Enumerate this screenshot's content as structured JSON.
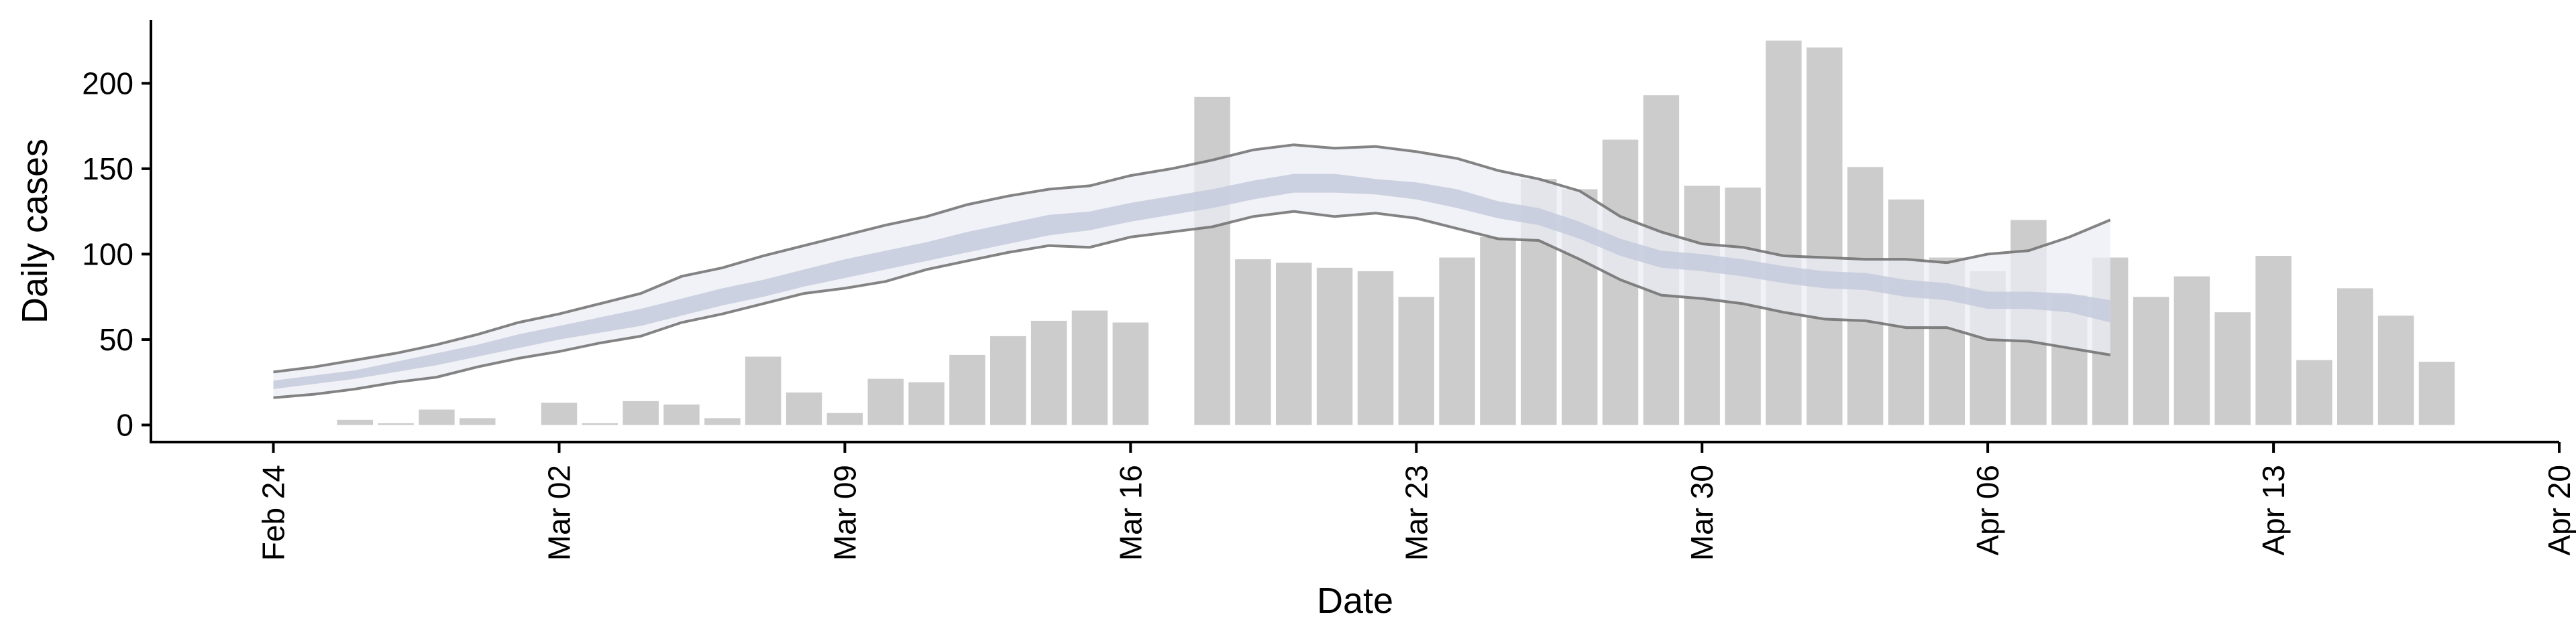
{
  "chart_data": {
    "type": "bar",
    "xlabel": "Date",
    "ylabel": "Daily cases",
    "x_ticks": [
      "Feb 24",
      "Mar 02",
      "Mar 09",
      "Mar 16",
      "Mar 23",
      "Mar 30",
      "Apr 06",
      "Apr 13",
      "Apr 20"
    ],
    "x_tick_dates": [
      "2020-02-24",
      "2020-03-02",
      "2020-03-09",
      "2020-03-16",
      "2020-03-23",
      "2020-03-30",
      "2020-04-06",
      "2020-04-13",
      "2020-04-20"
    ],
    "y_ticks": [
      0,
      50,
      100,
      150,
      200
    ],
    "xlim": [
      "2020-02-21",
      "2020-04-20"
    ],
    "ylim": [
      -10,
      237
    ],
    "grid": false,
    "colors": {
      "bars": "#cccccc",
      "ci_outer": "#eceef4",
      "ci_inner": "#c5cbdd",
      "ci_lines": "#6e6e6e",
      "axis": "#000000"
    },
    "bars": {
      "dates": [
        "2020-02-24",
        "2020-02-25",
        "2020-02-26",
        "2020-02-27",
        "2020-02-28",
        "2020-02-29",
        "2020-03-01",
        "2020-03-02",
        "2020-03-03",
        "2020-03-04",
        "2020-03-05",
        "2020-03-06",
        "2020-03-07",
        "2020-03-08",
        "2020-03-09",
        "2020-03-10",
        "2020-03-11",
        "2020-03-12",
        "2020-03-13",
        "2020-03-14",
        "2020-03-15",
        "2020-03-16",
        "2020-03-17",
        "2020-03-18",
        "2020-03-19",
        "2020-03-20",
        "2020-03-21",
        "2020-03-22",
        "2020-03-23",
        "2020-03-24",
        "2020-03-25",
        "2020-03-26",
        "2020-03-27",
        "2020-03-28",
        "2020-03-29",
        "2020-03-30",
        "2020-03-31",
        "2020-04-01",
        "2020-04-02",
        "2020-04-03",
        "2020-04-04",
        "2020-04-05",
        "2020-04-06",
        "2020-04-07",
        "2020-04-08",
        "2020-04-09",
        "2020-04-10",
        "2020-04-11",
        "2020-04-12",
        "2020-04-13",
        "2020-04-14",
        "2020-04-15",
        "2020-04-16",
        "2020-04-17",
        "2020-04-18"
      ],
      "values": [
        0,
        0,
        3,
        1,
        9,
        4,
        0,
        13,
        1,
        14,
        12,
        4,
        40,
        19,
        7,
        27,
        25,
        41,
        52,
        61,
        67,
        60,
        0,
        192,
        97,
        95,
        92,
        90,
        75,
        98,
        110,
        144,
        138,
        167,
        193,
        140,
        139,
        225,
        221,
        151,
        132,
        98,
        90,
        120,
        76,
        98,
        75,
        87,
        66,
        99,
        38,
        80,
        64,
        37,
        0
      ]
    },
    "estimate": {
      "dates": [
        "2020-02-24",
        "2020-02-25",
        "2020-02-26",
        "2020-02-27",
        "2020-02-28",
        "2020-02-29",
        "2020-03-01",
        "2020-03-02",
        "2020-03-03",
        "2020-03-04",
        "2020-03-05",
        "2020-03-06",
        "2020-03-07",
        "2020-03-08",
        "2020-03-09",
        "2020-03-10",
        "2020-03-11",
        "2020-03-12",
        "2020-03-13",
        "2020-03-14",
        "2020-03-15",
        "2020-03-16",
        "2020-03-17",
        "2020-03-18",
        "2020-03-19",
        "2020-03-20",
        "2020-03-21",
        "2020-03-22",
        "2020-03-23",
        "2020-03-24",
        "2020-03-25",
        "2020-03-26",
        "2020-03-27",
        "2020-03-28",
        "2020-03-29",
        "2020-03-30",
        "2020-03-31",
        "2020-04-01",
        "2020-04-02",
        "2020-04-03",
        "2020-04-04",
        "2020-04-05",
        "2020-04-06",
        "2020-04-07",
        "2020-04-08",
        "2020-04-09"
      ],
      "lower_90": [
        16,
        18,
        21,
        25,
        28,
        34,
        39,
        43,
        48,
        52,
        60,
        65,
        71,
        77,
        80,
        84,
        91,
        96,
        101,
        105,
        104,
        110,
        113,
        116,
        122,
        125,
        122,
        124,
        121,
        115,
        109,
        108,
        97,
        85,
        76,
        74,
        71,
        66,
        62,
        61,
        57,
        57,
        50,
        49,
        45,
        41
      ],
      "lower_50": [
        21,
        24,
        27,
        31,
        35,
        40,
        45,
        50,
        54,
        58,
        64,
        70,
        75,
        81,
        86,
        91,
        96,
        101,
        106,
        111,
        114,
        119,
        123,
        127,
        132,
        136,
        136,
        135,
        132,
        127,
        121,
        117,
        109,
        99,
        92,
        90,
        87,
        83,
        80,
        79,
        75,
        73,
        68,
        68,
        66,
        60
      ],
      "upper_50": [
        26,
        29,
        32,
        37,
        42,
        47,
        53,
        58,
        63,
        68,
        74,
        80,
        85,
        91,
        97,
        102,
        107,
        113,
        118,
        123,
        125,
        130,
        134,
        138,
        143,
        147,
        147,
        144,
        142,
        138,
        131,
        127,
        119,
        109,
        102,
        100,
        97,
        93,
        90,
        89,
        85,
        83,
        78,
        78,
        77,
        73
      ],
      "upper_90": [
        31,
        34,
        38,
        42,
        47,
        53,
        60,
        65,
        71,
        77,
        87,
        92,
        99,
        105,
        111,
        117,
        122,
        129,
        134,
        138,
        140,
        146,
        150,
        155,
        161,
        164,
        162,
        163,
        160,
        156,
        149,
        144,
        137,
        122,
        113,
        106,
        104,
        99,
        98,
        97,
        97,
        95,
        100,
        102,
        110,
        120
      ]
    }
  }
}
